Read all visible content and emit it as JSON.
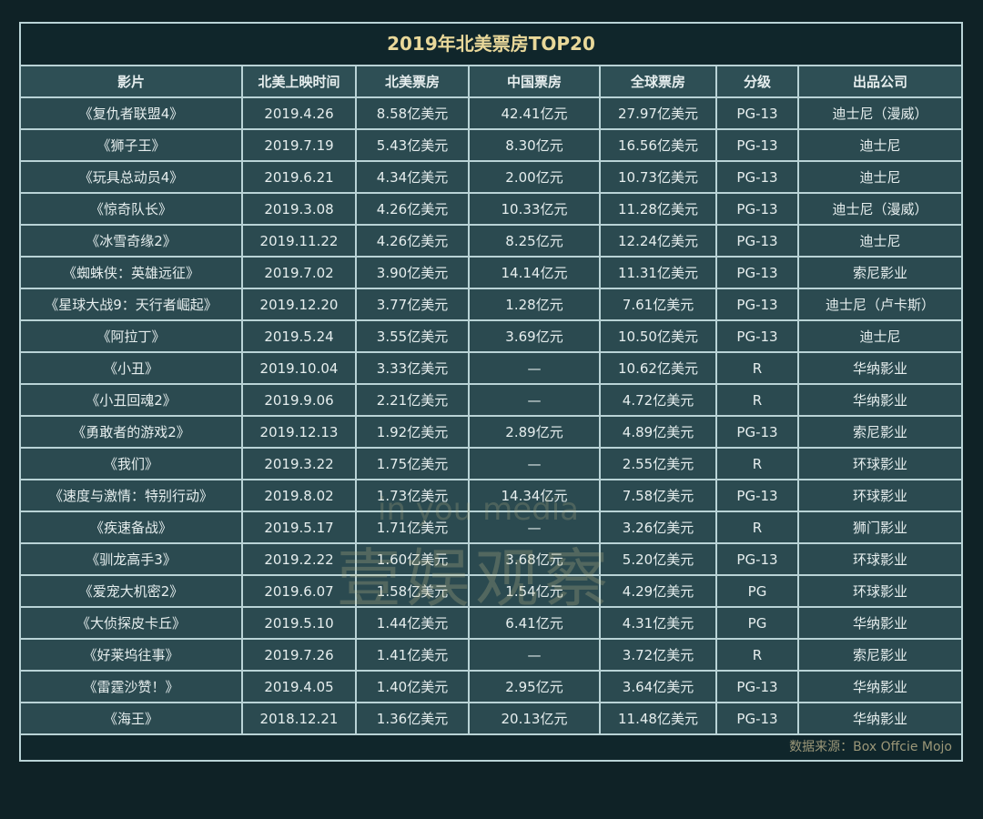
{
  "title": "2019年北美票房TOP20",
  "columns": [
    "影片",
    "北美上映时间",
    "北美票房",
    "中国票房",
    "全球票房",
    "分级",
    "出品公司"
  ],
  "rows": [
    [
      "《复仇者联盟4》",
      "2019.4.26",
      "8.58亿美元",
      "42.41亿元",
      "27.97亿美元",
      "PG-13",
      "迪士尼（漫威）"
    ],
    [
      "《狮子王》",
      "2019.7.19",
      "5.43亿美元",
      "8.30亿元",
      "16.56亿美元",
      "PG-13",
      "迪士尼"
    ],
    [
      "《玩具总动员4》",
      "2019.6.21",
      "4.34亿美元",
      "2.00亿元",
      "10.73亿美元",
      "PG-13",
      "迪士尼"
    ],
    [
      "《惊奇队长》",
      "2019.3.08",
      "4.26亿美元",
      "10.33亿元",
      "11.28亿美元",
      "PG-13",
      "迪士尼（漫威）"
    ],
    [
      "《冰雪奇缘2》",
      "2019.11.22",
      "4.26亿美元",
      "8.25亿元",
      "12.24亿美元",
      "PG-13",
      "迪士尼"
    ],
    [
      "《蜘蛛侠：英雄远征》",
      "2019.7.02",
      "3.90亿美元",
      "14.14亿元",
      "11.31亿美元",
      "PG-13",
      "索尼影业"
    ],
    [
      "《星球大战9：天行者崛起》",
      "2019.12.20",
      "3.77亿美元",
      "1.28亿元",
      "7.61亿美元",
      "PG-13",
      "迪士尼（卢卡斯）"
    ],
    [
      "《阿拉丁》",
      "2019.5.24",
      "3.55亿美元",
      "3.69亿元",
      "10.50亿美元",
      "PG-13",
      "迪士尼"
    ],
    [
      "《小丑》",
      "2019.10.04",
      "3.33亿美元",
      "—",
      "10.62亿美元",
      "R",
      "华纳影业"
    ],
    [
      "《小丑回魂2》",
      "2019.9.06",
      "2.21亿美元",
      "—",
      "4.72亿美元",
      "R",
      "华纳影业"
    ],
    [
      "《勇敢者的游戏2》",
      "2019.12.13",
      "1.92亿美元",
      "2.89亿元",
      "4.89亿美元",
      "PG-13",
      "索尼影业"
    ],
    [
      "《我们》",
      "2019.3.22",
      "1.75亿美元",
      "—",
      "2.55亿美元",
      "R",
      "环球影业"
    ],
    [
      "《速度与激情：特别行动》",
      "2019.8.02",
      "1.73亿美元",
      "14.34亿元",
      "7.58亿美元",
      "PG-13",
      "环球影业"
    ],
    [
      "《疾速备战》",
      "2019.5.17",
      "1.71亿美元",
      "—",
      "3.26亿美元",
      "R",
      "狮门影业"
    ],
    [
      "《驯龙高手3》",
      "2019.2.22",
      "1.60亿美元",
      "3.68亿元",
      "5.20亿美元",
      "PG-13",
      "环球影业"
    ],
    [
      "《爱宠大机密2》",
      "2019.6.07",
      "1.58亿美元",
      "1.54亿元",
      "4.29亿美元",
      "PG",
      "环球影业"
    ],
    [
      "《大侦探皮卡丘》",
      "2019.5.10",
      "1.44亿美元",
      "6.41亿元",
      "4.31亿美元",
      "PG",
      "华纳影业"
    ],
    [
      "《好莱坞往事》",
      "2019.7.26",
      "1.41亿美元",
      "—",
      "3.72亿美元",
      "R",
      "索尼影业"
    ],
    [
      "《雷霆沙赞！》",
      "2019.4.05",
      "1.40亿美元",
      "2.95亿元",
      "3.64亿美元",
      "PG-13",
      "华纳影业"
    ],
    [
      "《海王》",
      "2018.12.21",
      "1.36亿美元",
      "20.13亿元",
      "11.48亿美元",
      "PG-13",
      "华纳影业"
    ]
  ],
  "source": "数据来源：Box Offcie Mojo",
  "watermark": {
    "latin": "in you media",
    "cjk": "壹娱观察"
  },
  "colors": {
    "title": "#e9d89a",
    "cell": "#2b4a50",
    "border": "#b9d3d6",
    "background": "#0f2226"
  }
}
